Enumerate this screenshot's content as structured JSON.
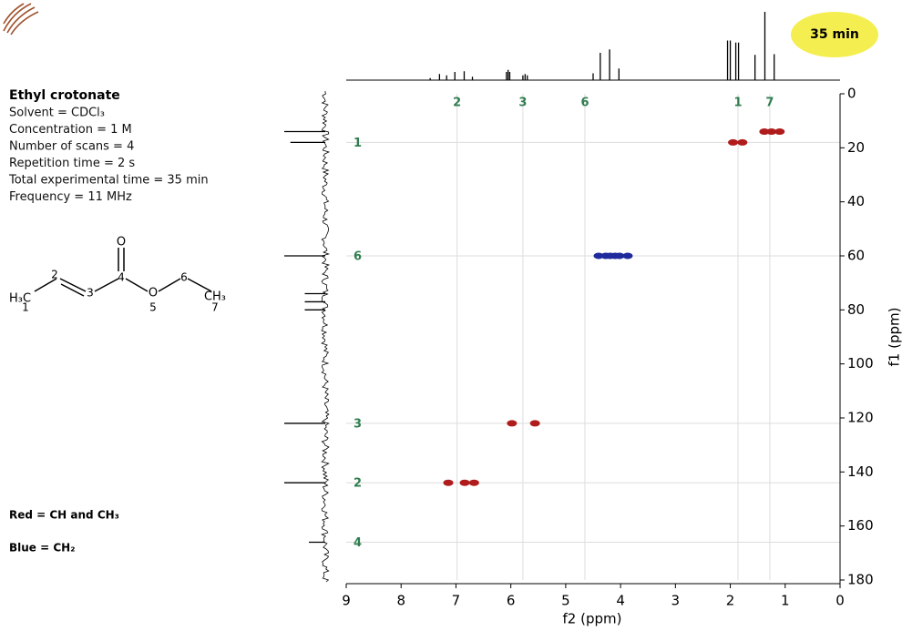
{
  "badge": "35 min",
  "info": {
    "title": "Ethyl crotonate",
    "lines": [
      "Solvent = CDCl₃",
      "Concentration = 1 M",
      "Number of scans = 4",
      "Repetition time = 2 s",
      "Total experimental time = 35 min",
      "Frequency = 11 MHz"
    ]
  },
  "structure": {
    "labels": [
      "H₃C",
      "1",
      "2",
      "3",
      "4",
      "O",
      "O",
      "5",
      "6",
      "CH₃",
      "7"
    ]
  },
  "chart_data": {
    "type": "hsqc",
    "x_label": "f2 (ppm)",
    "y_label": "f1 (ppm)",
    "xlim": [
      9,
      0
    ],
    "ylim": [
      0,
      180
    ],
    "xticks": [
      9,
      8,
      7,
      6,
      5,
      4,
      3,
      2,
      1,
      0
    ],
    "yticks": [
      0,
      20,
      40,
      60,
      80,
      100,
      120,
      140,
      160,
      180
    ],
    "legend": [
      "Red = CH and CH₃",
      "Blue = CH₂"
    ],
    "series": [
      {
        "color": "#b01c1c",
        "x": [
          1.95,
          1.78,
          1.38,
          1.25,
          1.1,
          5.98,
          5.56,
          7.14,
          6.84,
          6.67
        ],
        "y": [
          18,
          18,
          14,
          14,
          14,
          122,
          122,
          144,
          144,
          144
        ]
      },
      {
        "color": "#1f2a9c",
        "x": [
          4.4,
          4.27,
          4.19,
          4.1,
          4.02,
          3.87
        ],
        "y": [
          60,
          60,
          60,
          60,
          60,
          60
        ]
      }
    ],
    "label_color": "#2e7d4f",
    "top_labels": {
      "labels": [
        "2",
        "3",
        "6",
        "1",
        "7"
      ],
      "x": [
        6.98,
        5.78,
        4.65,
        1.86,
        1.28
      ]
    },
    "side_labels": {
      "labels": [
        "1",
        "6",
        "3",
        "2",
        "4"
      ],
      "y": [
        18,
        60,
        122,
        144,
        166
      ]
    },
    "h_spectrum": {
      "x": [
        7.47,
        7.3,
        7.17,
        7.02,
        6.85,
        6.7,
        6.08,
        6.05,
        6.02,
        5.78,
        5.74,
        5.7,
        4.5,
        4.37,
        4.2,
        4.03,
        2.05,
        2.0,
        1.9,
        1.85,
        1.55,
        1.37,
        1.2
      ],
      "intensity": [
        3,
        9,
        7,
        12,
        13,
        5,
        12,
        15,
        12,
        7,
        9,
        7,
        10,
        40,
        45,
        17,
        58,
        58,
        55,
        55,
        37,
        100,
        38
      ]
    },
    "c_spectrum": {
      "y": [
        14,
        18,
        60,
        74,
        77,
        80,
        122,
        144,
        166
      ],
      "intensity": [
        100,
        85,
        100,
        50,
        50,
        50,
        100,
        100,
        40
      ]
    }
  }
}
